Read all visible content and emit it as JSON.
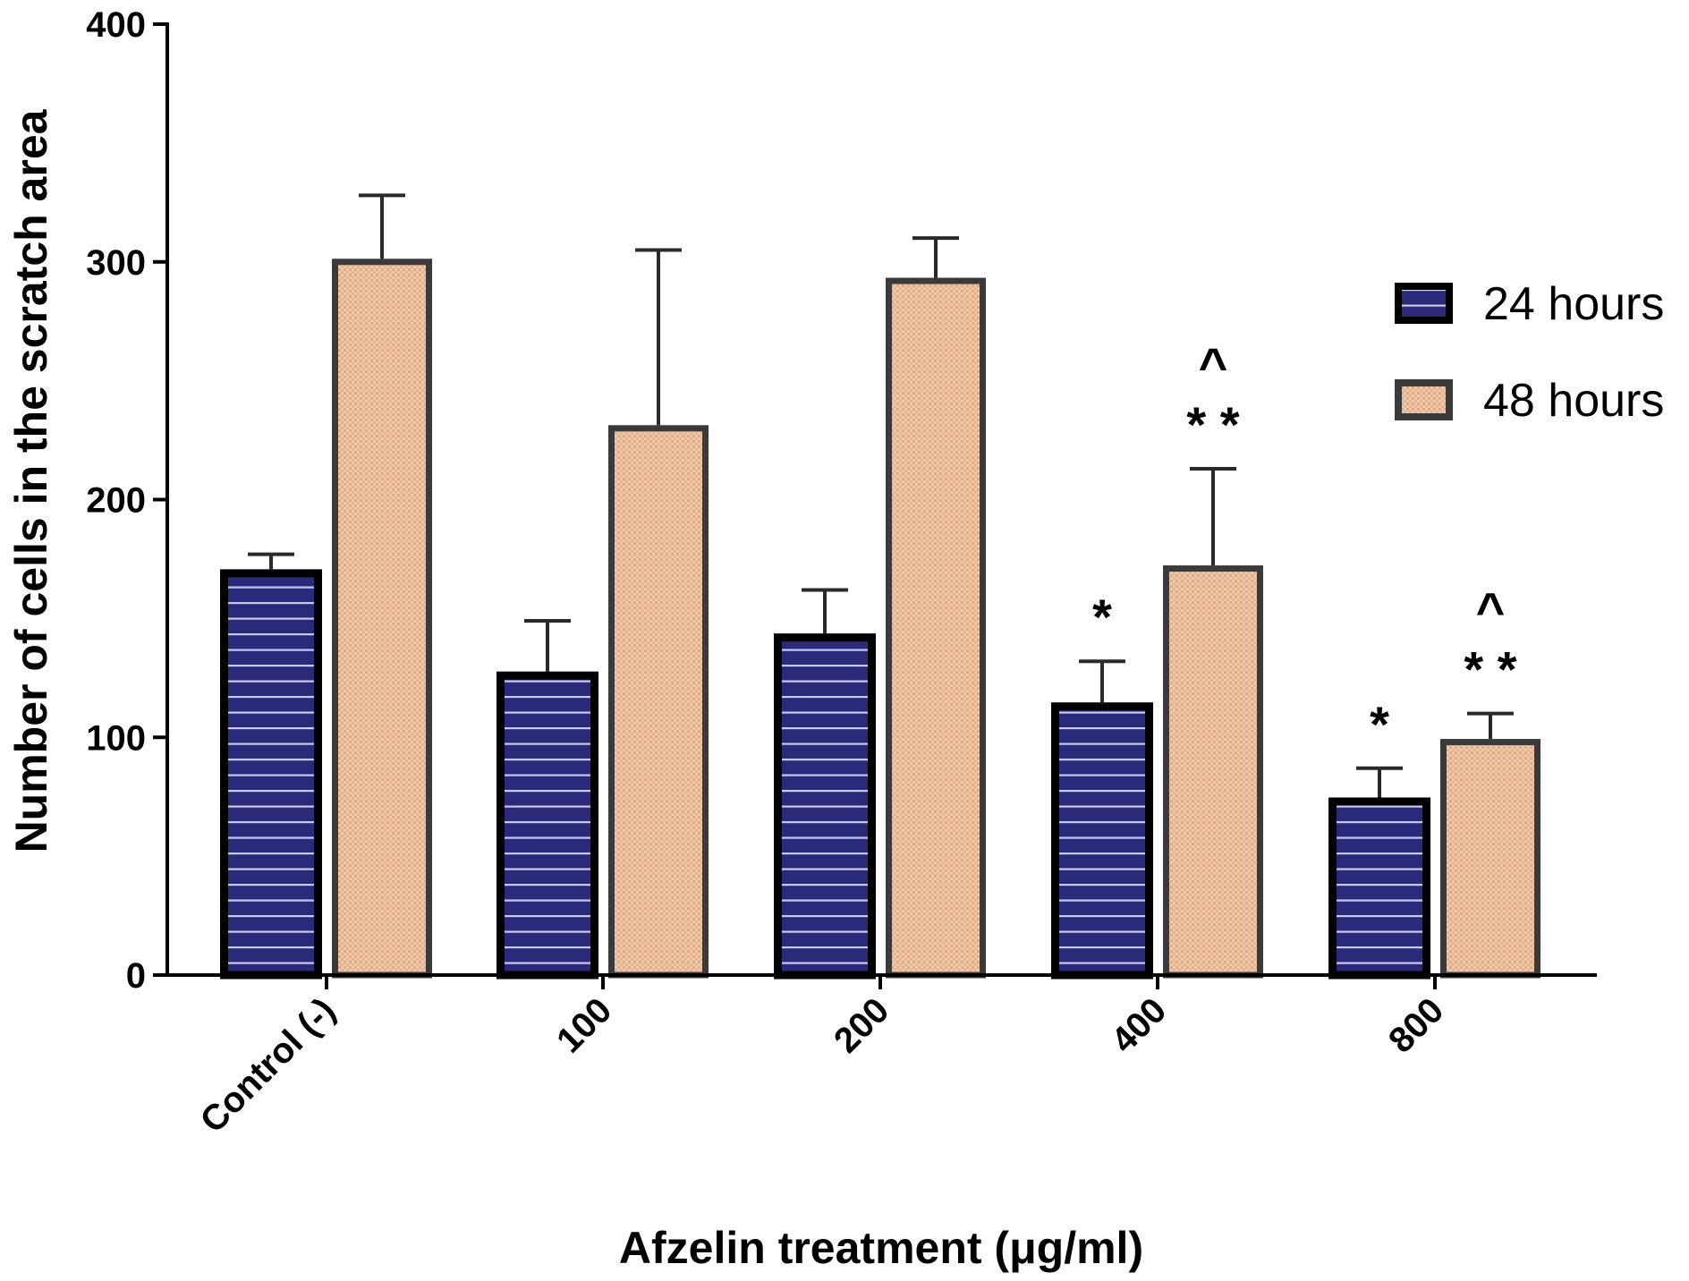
{
  "chart_data": {
    "type": "bar",
    "xlabel": "Afzelin treatment (μg/ml)",
    "ylabel": "Number of cells in the scratch area",
    "categories": [
      "Control (-)",
      "100",
      "200",
      "400",
      "800"
    ],
    "ylim": [
      0,
      400
    ],
    "yticks": [
      0,
      100,
      200,
      300,
      400
    ],
    "grid": false,
    "legend_position": "right",
    "series": [
      {
        "name": "24 hours",
        "values": [
          169,
          126,
          142,
          113,
          73
        ],
        "errors": [
          8,
          23,
          20,
          19,
          14
        ],
        "fill": "#2b2a7a",
        "stroke": "#000000",
        "stripe": "#c9c8f0"
      },
      {
        "name": "48 hours",
        "values": [
          300,
          230,
          292,
          171,
          98
        ],
        "errors": [
          28,
          75,
          18,
          42,
          12
        ],
        "fill": "#f3c9a6",
        "stroke": "#3a3a3a",
        "dot": "#c8a486"
      }
    ],
    "annotations": [
      {
        "category": "400",
        "series": "24 hours",
        "lines": [
          "*"
        ]
      },
      {
        "category": "400",
        "series": "48 hours",
        "lines": [
          "^",
          "* *"
        ]
      },
      {
        "category": "800",
        "series": "24 hours",
        "lines": [
          "*"
        ]
      },
      {
        "category": "800",
        "series": "48 hours",
        "lines": [
          "^",
          "* *"
        ]
      }
    ]
  }
}
